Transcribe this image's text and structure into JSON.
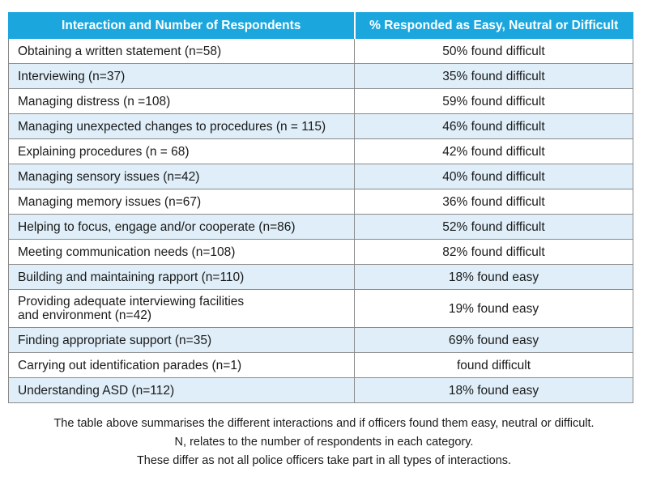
{
  "table": {
    "headers": [
      "Interaction and Number of Respondents",
      "% Responded as Easy, Neutral or Difficult"
    ],
    "rows": [
      {
        "interaction": "Obtaining a written statement (n=58)",
        "response": "50% found difficult"
      },
      {
        "interaction": "Interviewing (n=37)",
        "response": "35% found difficult"
      },
      {
        "interaction": "Managing distress (n =108)",
        "response": "59% found difficult"
      },
      {
        "interaction": "Managing unexpected changes to procedures (n = 115)",
        "response": "46% found difficult"
      },
      {
        "interaction": "Explaining procedures (n = 68)",
        "response": "42% found difficult"
      },
      {
        "interaction": "Managing sensory issues (n=42)",
        "response": "40% found difficult"
      },
      {
        "interaction": "Managing memory issues (n=67)",
        "response": "36% found difficult"
      },
      {
        "interaction": "Helping to focus, engage and/or cooperate (n=86)",
        "response": "52% found difficult"
      },
      {
        "interaction": "Meeting communication needs (n=108)",
        "response": "82% found difficult"
      },
      {
        "interaction": "Building and maintaining rapport (n=110)",
        "response": "18% found easy"
      },
      {
        "interaction_line1": "Providing adequate interviewing facilities",
        "interaction_line2": "and environment (n=42)",
        "response": "19% found easy"
      },
      {
        "interaction": "Finding appropriate support (n=35)",
        "response": "69% found easy"
      },
      {
        "interaction": "Carrying out identification parades (n=1)",
        "response": "found difficult"
      },
      {
        "interaction": "Understanding ASD (n=112)",
        "response": "18% found easy"
      }
    ]
  },
  "caption": {
    "line1": "The table above summarises the different interactions and if officers found them easy, neutral or difficult.",
    "line2": "N, relates to the number of respondents in each category.",
    "line3": "These differ as not all police officers take part in all types of interactions."
  }
}
